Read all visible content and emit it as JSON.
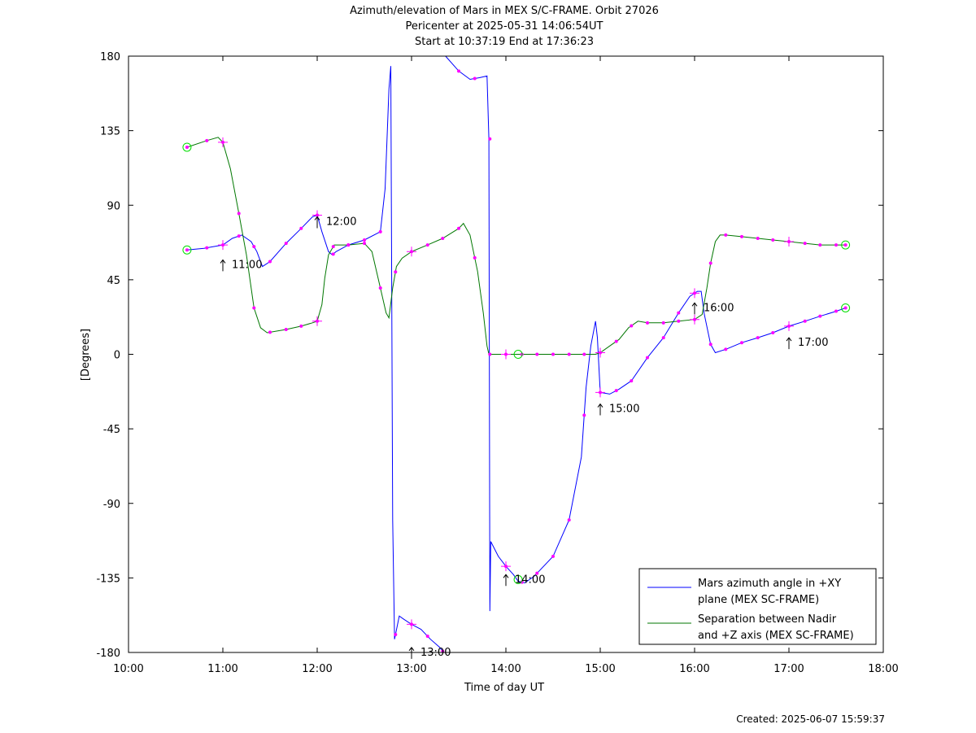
{
  "chart_data": {
    "type": "line",
    "title": [
      "Azimuth/elevation of Mars in MEX S/C-FRAME.  Orbit 27026",
      "Pericenter at 2025-05-31 14:06:54UT",
      "Start at 10:37:19 End at 17:36:23"
    ],
    "xlabel": "Time of day UT",
    "ylabel": "[Degrees]",
    "xlim": [
      10,
      18
    ],
    "ylim": [
      -180,
      180
    ],
    "xticks": [
      {
        "v": 10,
        "label": "10:00"
      },
      {
        "v": 11,
        "label": "11:00"
      },
      {
        "v": 12,
        "label": "12:00"
      },
      {
        "v": 13,
        "label": "13:00"
      },
      {
        "v": 14,
        "label": "14:00"
      },
      {
        "v": 15,
        "label": "15:00"
      },
      {
        "v": 16,
        "label": "16:00"
      },
      {
        "v": 17,
        "label": "17:00"
      },
      {
        "v": 18,
        "label": "18:00"
      }
    ],
    "yticks": [
      {
        "v": 180,
        "label": "180"
      },
      {
        "v": 135,
        "label": "135"
      },
      {
        "v": 90,
        "label": "90"
      },
      {
        "v": 45,
        "label": "45"
      },
      {
        "v": 0,
        "label": "0"
      },
      {
        "v": -45,
        "label": "-45"
      },
      {
        "v": -90,
        "label": "-90"
      },
      {
        "v": -135,
        "label": "-135"
      },
      {
        "v": -180,
        "label": "-180"
      }
    ],
    "legend_position": "bottom-right",
    "series": [
      {
        "name": "Mars azimuth angle in +XY plane (MEX SC-FRAME)",
        "legend_lines": [
          "Mars azimuth angle in +XY",
          "plane (MEX SC-FRAME)"
        ],
        "color": "#0000ff",
        "points": [
          [
            10.62,
            63
          ],
          [
            10.8,
            64
          ],
          [
            11.0,
            66
          ],
          [
            11.1,
            70
          ],
          [
            11.2,
            72
          ],
          [
            11.3,
            68
          ],
          [
            11.36,
            62
          ],
          [
            11.42,
            53
          ],
          [
            11.5,
            56
          ],
          [
            11.67,
            67
          ],
          [
            11.83,
            76
          ],
          [
            11.95,
            83
          ],
          [
            12.0,
            84
          ],
          [
            12.05,
            74
          ],
          [
            12.12,
            62
          ],
          [
            12.16,
            60
          ],
          [
            12.2,
            62
          ],
          [
            12.33,
            66
          ],
          [
            12.5,
            69
          ],
          [
            12.67,
            74
          ],
          [
            12.72,
            100
          ],
          [
            12.76,
            160
          ],
          [
            12.78,
            174
          ],
          [
            12.8,
            -100
          ],
          [
            12.82,
            -172
          ],
          [
            12.87,
            -158
          ],
          [
            12.92,
            -160
          ],
          [
            13.0,
            -163
          ],
          [
            13.1,
            -166
          ],
          [
            13.2,
            -172
          ],
          [
            13.3,
            -177
          ],
          [
            13.34,
            -180
          ],
          [
            null,
            null
          ],
          [
            13.36,
            180
          ],
          [
            13.5,
            171
          ],
          [
            13.62,
            166
          ],
          [
            13.72,
            167
          ],
          [
            13.8,
            168
          ],
          [
            13.82,
            130
          ],
          [
            13.83,
            -155
          ],
          [
            13.84,
            -113
          ],
          [
            13.92,
            -122
          ],
          [
            14.0,
            -128
          ],
          [
            14.08,
            -133
          ],
          [
            14.13,
            -137
          ],
          [
            14.2,
            -138
          ],
          [
            14.3,
            -134
          ],
          [
            14.5,
            -122
          ],
          [
            14.67,
            -100
          ],
          [
            14.8,
            -62
          ],
          [
            14.85,
            -20
          ],
          [
            14.9,
            5
          ],
          [
            14.95,
            20
          ],
          [
            14.97,
            10
          ],
          [
            15.0,
            -23
          ],
          [
            15.1,
            -24
          ],
          [
            15.2,
            -21
          ],
          [
            15.33,
            -16
          ],
          [
            15.5,
            -2
          ],
          [
            15.67,
            10
          ],
          [
            15.83,
            25
          ],
          [
            15.95,
            35
          ],
          [
            16.03,
            38
          ],
          [
            16.07,
            38
          ],
          [
            16.1,
            25
          ],
          [
            16.17,
            6
          ],
          [
            16.22,
            1
          ],
          [
            16.33,
            3
          ],
          [
            16.5,
            7
          ],
          [
            16.67,
            10
          ],
          [
            16.83,
            13
          ],
          [
            17.0,
            17
          ],
          [
            17.17,
            20
          ],
          [
            17.33,
            23
          ],
          [
            17.5,
            26
          ],
          [
            17.6,
            28
          ]
        ]
      },
      {
        "name": "Separation between Nadir and +Z axis (MEX SC-FRAME)",
        "legend_lines": [
          "Separation between Nadir",
          "and +Z axis (MEX SC-FRAME)"
        ],
        "color": "#007700",
        "points": [
          [
            10.62,
            125
          ],
          [
            10.83,
            129
          ],
          [
            10.95,
            131
          ],
          [
            11.0,
            128
          ],
          [
            11.08,
            112
          ],
          [
            11.17,
            85
          ],
          [
            11.25,
            60
          ],
          [
            11.33,
            28
          ],
          [
            11.4,
            16
          ],
          [
            11.47,
            13
          ],
          [
            11.67,
            15
          ],
          [
            11.83,
            17
          ],
          [
            11.95,
            19
          ],
          [
            12.0,
            20
          ],
          [
            12.05,
            30
          ],
          [
            12.08,
            46
          ],
          [
            12.12,
            60
          ],
          [
            12.18,
            66
          ],
          [
            12.33,
            66
          ],
          [
            12.5,
            67
          ],
          [
            12.58,
            62
          ],
          [
            12.67,
            40
          ],
          [
            12.73,
            25
          ],
          [
            12.76,
            22
          ],
          [
            12.8,
            40
          ],
          [
            12.84,
            53
          ],
          [
            12.9,
            58
          ],
          [
            13.0,
            62
          ],
          [
            13.17,
            66
          ],
          [
            13.33,
            70
          ],
          [
            13.5,
            76
          ],
          [
            13.55,
            79
          ],
          [
            13.62,
            72
          ],
          [
            13.7,
            50
          ],
          [
            13.76,
            25
          ],
          [
            13.8,
            5
          ],
          [
            13.82,
            0
          ],
          [
            14.0,
            0
          ],
          [
            14.5,
            0
          ],
          [
            14.83,
            0
          ],
          [
            14.95,
            0
          ],
          [
            15.0,
            1
          ],
          [
            15.1,
            5
          ],
          [
            15.2,
            9
          ],
          [
            15.3,
            16
          ],
          [
            15.4,
            20
          ],
          [
            15.5,
            19
          ],
          [
            15.67,
            19
          ],
          [
            15.83,
            20
          ],
          [
            16.0,
            21
          ],
          [
            16.08,
            24
          ],
          [
            16.13,
            40
          ],
          [
            16.17,
            55
          ],
          [
            16.22,
            68
          ],
          [
            16.27,
            72
          ],
          [
            16.33,
            72
          ],
          [
            16.5,
            71
          ],
          [
            16.67,
            70
          ],
          [
            16.83,
            69
          ],
          [
            17.0,
            68
          ],
          [
            17.17,
            67
          ],
          [
            17.33,
            66
          ],
          [
            17.5,
            66
          ],
          [
            17.6,
            66
          ]
        ]
      }
    ],
    "dot_times": [
      10.62,
      10.83,
      11.0,
      11.17,
      11.33,
      11.5,
      11.67,
      11.83,
      12.0,
      12.17,
      12.33,
      12.5,
      12.67,
      12.83,
      13.0,
      13.17,
      13.33,
      13.5,
      13.67,
      13.83,
      14.0,
      14.17,
      14.33,
      14.5,
      14.67,
      14.83,
      15.0,
      15.17,
      15.33,
      15.5,
      15.67,
      15.83,
      16.0,
      16.17,
      16.33,
      16.5,
      16.67,
      16.83,
      17.0,
      17.17,
      17.33,
      17.5,
      17.6
    ],
    "dot_color": "#ff00ff",
    "hour_markers": [
      11,
      12,
      13,
      14,
      15,
      16,
      17
    ],
    "hour_labels": [
      {
        "t": 11,
        "text": "11:00",
        "y": 58
      },
      {
        "t": 12,
        "text": "12:00",
        "y": 84
      },
      {
        "t": 13,
        "text": "13:00",
        "y": -176
      },
      {
        "t": 14,
        "text": "14:00",
        "y": -132
      },
      {
        "t": 15,
        "text": "15:00",
        "y": -29
      },
      {
        "t": 16,
        "text": "16:00",
        "y": 32
      },
      {
        "t": 17,
        "text": "17:00",
        "y": 11
      }
    ],
    "circle_markers": [
      {
        "t": 10.62,
        "y": 125
      },
      {
        "t": 10.62,
        "y": 63
      },
      {
        "t": 14.13,
        "y": 0
      },
      {
        "t": 14.13,
        "y": -136
      },
      {
        "t": 17.6,
        "y": 66
      },
      {
        "t": 17.6,
        "y": 28
      }
    ],
    "circle_color": "#00dd00"
  },
  "footer": {
    "created": "Created: 2025-06-07 15:59:37"
  }
}
